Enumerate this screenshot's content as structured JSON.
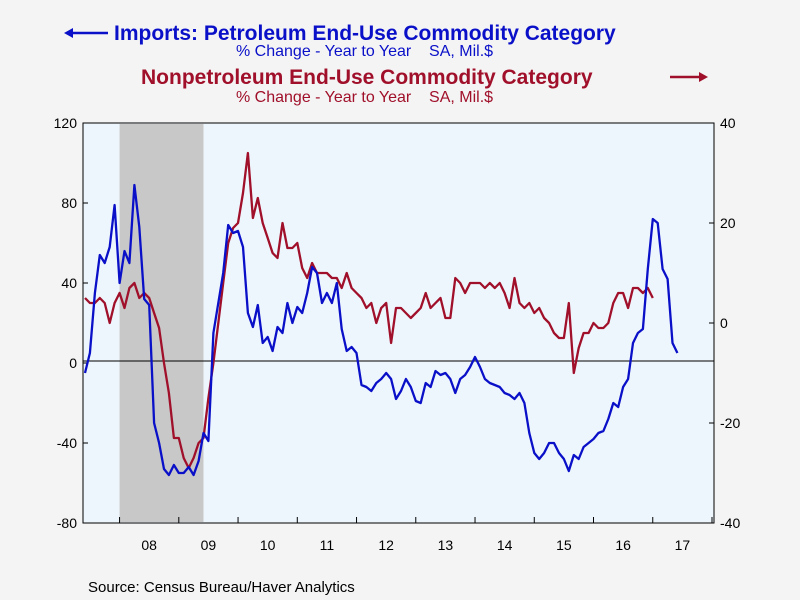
{
  "colors": {
    "petroleum": "#0a10c8",
    "nonpetroleum": "#a0102a",
    "plot_bg": "#eef6fd",
    "recession": "#c8c8c8"
  },
  "header": {
    "series1_title": "Imports: Petroleum End-Use Commodity Category",
    "series1_subtitle": "% Change - Year to Year    SA, Mil.$",
    "series2_title": "Nonpetroleum End-Use Commodity Category",
    "series2_subtitle": "% Change - Year to Year    SA, Mil.$",
    "series1_arrow_icon": "left-arrow-icon",
    "series2_arrow_icon": "right-arrow-icon"
  },
  "source": "Source:  Census Bureau/Haver Analytics",
  "chart_data": {
    "type": "line",
    "x_tick_labels": [
      "08",
      "09",
      "10",
      "11",
      "12",
      "13",
      "14",
      "15",
      "16",
      "17"
    ],
    "left_axis": {
      "ylim": [
        -80,
        120
      ],
      "ticks": [
        "120",
        "80",
        "40",
        "0",
        "-40",
        "-80"
      ]
    },
    "right_axis": {
      "ylim": [
        -40,
        40
      ],
      "ticks": [
        "40",
        "20",
        "0",
        "-20",
        "-40"
      ]
    },
    "recession": [
      "2008-01",
      "2009-06"
    ],
    "x_start": "2007-06",
    "series": [
      {
        "name": "Imports: Petroleum End-Use Commodity Category",
        "axis": "left",
        "values": [
          -5,
          5,
          35,
          54,
          50,
          58,
          79,
          40,
          56,
          50,
          89,
          68,
          32,
          29,
          -30,
          -40,
          -53,
          -56,
          -51,
          -55,
          -55,
          -52,
          -56,
          -49,
          -35,
          -39,
          15,
          30,
          45,
          69,
          65,
          66,
          58,
          25,
          18,
          29,
          10,
          13,
          6,
          18,
          15,
          30,
          20,
          28,
          25,
          35,
          48,
          45,
          30,
          35,
          30,
          40,
          17,
          6,
          8,
          5,
          -11,
          -12,
          -14,
          -10,
          -8,
          -5,
          -8,
          -18,
          -14,
          -8,
          -12,
          -19,
          -20,
          -10,
          -12,
          -4,
          -6,
          -5,
          -8,
          -15,
          -8,
          -6,
          -2,
          3,
          -2,
          -8,
          -10,
          -11,
          -12,
          -15,
          -16,
          -18,
          -15,
          -20,
          -35,
          -45,
          -48,
          -45,
          -40,
          -40,
          -45,
          -48,
          -54,
          -46,
          -48,
          -42,
          -40,
          -38,
          -35,
          -34,
          -28,
          -20,
          -22,
          -12,
          -8,
          10,
          15,
          17,
          47,
          72,
          70,
          47,
          42,
          10,
          5
        ]
      },
      {
        "name": "Nonpetroleum End-Use Commodity Category",
        "axis": "right",
        "values": [
          5,
          4,
          4,
          5,
          4,
          0,
          4,
          6,
          3,
          7,
          8,
          5,
          6,
          5,
          2,
          -1,
          -8,
          -14,
          -23,
          -23,
          -27,
          -29,
          -27,
          -24,
          -23,
          -15,
          -8,
          0,
          8,
          16,
          19,
          20,
          26,
          34,
          21,
          25,
          20,
          17,
          14,
          13,
          20,
          15,
          15,
          16,
          11,
          9,
          12,
          10,
          10,
          10,
          9,
          9,
          7,
          10,
          7,
          6,
          5,
          3,
          4,
          0,
          3,
          4,
          -4,
          3,
          3,
          2,
          1,
          2,
          3,
          6,
          3,
          4,
          5,
          1,
          1,
          9,
          8,
          6,
          8,
          8,
          8,
          7,
          8,
          7,
          8,
          6,
          3,
          9,
          4,
          3,
          4,
          2,
          3,
          1,
          0,
          -2,
          -3,
          -3,
          4,
          -10,
          -5,
          -2,
          -2,
          0,
          -1,
          -1,
          0,
          4,
          6,
          6,
          3,
          7,
          7,
          6,
          7,
          5
        ]
      }
    ]
  }
}
